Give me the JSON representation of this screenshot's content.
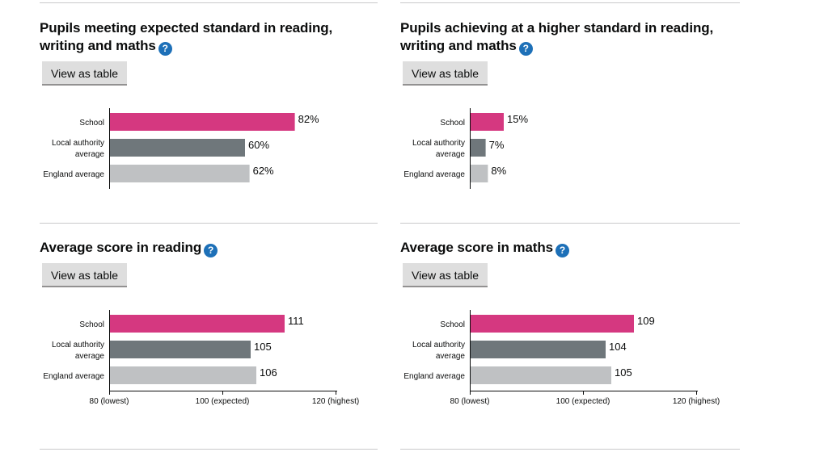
{
  "colors": {
    "school": "#d53880",
    "local_authority": "#6f777b",
    "england": "#bfc1c3",
    "help_icon": "#1d70b8"
  },
  "view_table_label": "View as table",
  "help_icon": "question-mark-circle-icon",
  "chart_data": [
    {
      "type": "bar",
      "title": "Pupils meeting expected standard in reading, writing and maths",
      "categories": [
        "School",
        "Local authority average",
        "England average"
      ],
      "values": [
        82,
        60,
        62
      ],
      "value_labels": [
        "82%",
        "60%",
        "62%"
      ],
      "xlim": [
        0,
        100
      ],
      "ticks": [],
      "grid": false,
      "legend": "none"
    },
    {
      "type": "bar",
      "title": "Pupils achieving at a higher standard in reading, writing and maths",
      "categories": [
        "School",
        "Local authority average",
        "England average"
      ],
      "values": [
        15,
        7,
        8
      ],
      "value_labels": [
        "15%",
        "7%",
        "8%"
      ],
      "xlim": [
        0,
        100
      ],
      "ticks": [],
      "grid": false,
      "legend": "none"
    },
    {
      "type": "bar",
      "title": "Average score in reading",
      "categories": [
        "School",
        "Local authority average",
        "England average"
      ],
      "values": [
        111,
        105,
        106
      ],
      "value_labels": [
        "111",
        "105",
        "106"
      ],
      "xlim": [
        80,
        120
      ],
      "ticks": [
        {
          "value": 80,
          "label": "80 (lowest)"
        },
        {
          "value": 100,
          "label": "100 (expected)"
        },
        {
          "value": 120,
          "label": "120 (highest)"
        }
      ],
      "grid": false,
      "legend": "none"
    },
    {
      "type": "bar",
      "title": "Average score in maths",
      "categories": [
        "School",
        "Local authority average",
        "England average"
      ],
      "values": [
        109,
        104,
        105
      ],
      "value_labels": [
        "109",
        "104",
        "105"
      ],
      "xlim": [
        80,
        120
      ],
      "ticks": [
        {
          "value": 80,
          "label": "80 (lowest)"
        },
        {
          "value": 100,
          "label": "100 (expected)"
        },
        {
          "value": 120,
          "label": "120 (highest)"
        }
      ],
      "grid": false,
      "legend": "none"
    }
  ]
}
